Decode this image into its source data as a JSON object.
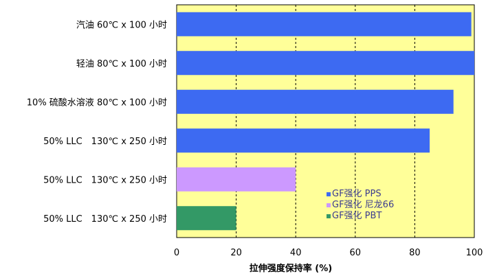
{
  "chart_data": {
    "type": "bar",
    "orientation": "horizontal",
    "xlabel": "拉伸强度保持率 (%)",
    "ylabel": "",
    "xlim": [
      0,
      100
    ],
    "x_ticks": [
      "0",
      "20",
      "40",
      "60",
      "80",
      "100"
    ],
    "grid": "vertical dashed",
    "legend_position": "lower-right",
    "categories": [
      "汽油 60℃ x 100 小时",
      "轻油 80℃ x 100 小时",
      "10% 硫酸水溶液 80℃ x 100 小时",
      "50% LLC　130℃ x 250 小时",
      "50% LLC　130℃ x 250 小时",
      "50% LLC　130℃ x 250 小时"
    ],
    "series": [
      {
        "name": "GF强化 PPS",
        "color": "#3d6af2",
        "values": [
          99,
          100,
          93,
          85,
          null,
          null
        ]
      },
      {
        "name": "GF强化 尼龙66",
        "color": "#cc99ff",
        "values": [
          null,
          null,
          null,
          null,
          40,
          null
        ]
      },
      {
        "name": "GF强化 PBT",
        "color": "#339966",
        "values": [
          null,
          null,
          null,
          null,
          null,
          20
        ]
      }
    ],
    "plot_background": "#ffff99"
  }
}
